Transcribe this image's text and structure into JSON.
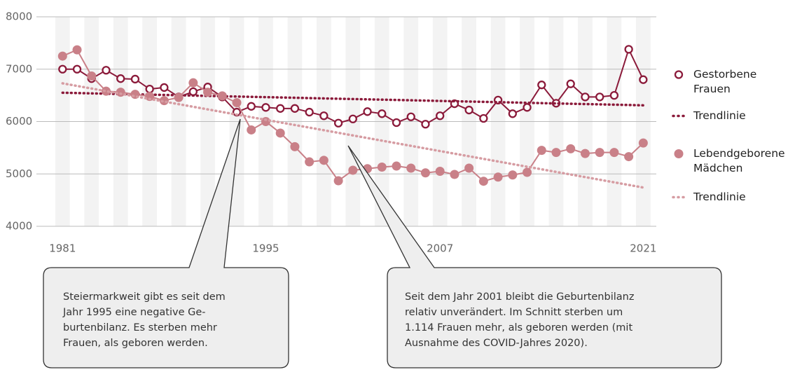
{
  "chart_data": {
    "type": "line",
    "x": [
      1981,
      1982,
      1983,
      1984,
      1985,
      1986,
      1987,
      1988,
      1989,
      1990,
      1991,
      1992,
      1993,
      1994,
      1995,
      1996,
      1997,
      1998,
      1999,
      2000,
      2001,
      2002,
      2003,
      2004,
      2005,
      2006,
      2007,
      2008,
      2009,
      2010,
      2011,
      2012,
      2013,
      2014,
      2015,
      2016,
      2017,
      2018,
      2019,
      2020,
      2021
    ],
    "series": [
      {
        "name": "Gestorbene Frauen",
        "color": "#8b1a3a",
        "marker": "open",
        "values": [
          7000,
          7000,
          6820,
          6980,
          6820,
          6810,
          6620,
          6650,
          6470,
          6570,
          6660,
          6470,
          6180,
          6290,
          6270,
          6250,
          6250,
          6180,
          6110,
          5970,
          6050,
          6190,
          6150,
          5980,
          6090,
          5950,
          6110,
          6340,
          6220,
          6060,
          6410,
          6150,
          6270,
          6700,
          6350,
          6720,
          6470,
          6470,
          6500,
          7380,
          6800
        ]
      },
      {
        "name": "Trendlinie",
        "color": "#8b1a3a",
        "style": "dotted",
        "x": [
          1981,
          2021
        ],
        "values": [
          6550,
          6310
        ]
      },
      {
        "name": "Lebendgeborene Mädchen",
        "color": "#c98088",
        "marker": "filled",
        "values": [
          7250,
          7370,
          6870,
          6580,
          6560,
          6520,
          6480,
          6400,
          6460,
          6740,
          6560,
          6490,
          6360,
          5840,
          6000,
          5780,
          5520,
          5230,
          5260,
          4870,
          5070,
          5100,
          5130,
          5150,
          5110,
          5020,
          5050,
          4990,
          5110,
          4860,
          4940,
          4980,
          5030,
          5450,
          5410,
          5480,
          5390,
          5410,
          5410,
          5330,
          5590
        ]
      },
      {
        "name": "Trendlinie",
        "color": "#d69ca2",
        "style": "dotted",
        "x": [
          1981,
          2021
        ],
        "values": [
          6730,
          4740
        ]
      }
    ],
    "xlim": [
      1979.2,
      2021.9
    ],
    "xticks": [
      1981,
      1995,
      2007,
      2021
    ],
    "ylim": [
      4000,
      8000
    ],
    "yticks": [
      4000,
      5000,
      6000,
      7000,
      8000
    ],
    "grid": true,
    "annotations": [
      {
        "lines": [
          "Steiermarkweit gibt es seit dem",
          "Jahr 1995 eine negative Ge-",
          "burtenbilanz. Es sterben mehr",
          "Frauen, als geboren werden."
        ]
      },
      {
        "lines": [
          "Seit dem Jahr 2001 bleibt die Geburtenbilanz",
          "relativ unverändert. Im Schnitt sterben um",
          "1.114 Frauen mehr, als geboren werden (mit",
          "Ausnahme des COVID-Jahres 2020)."
        ]
      }
    ]
  }
}
